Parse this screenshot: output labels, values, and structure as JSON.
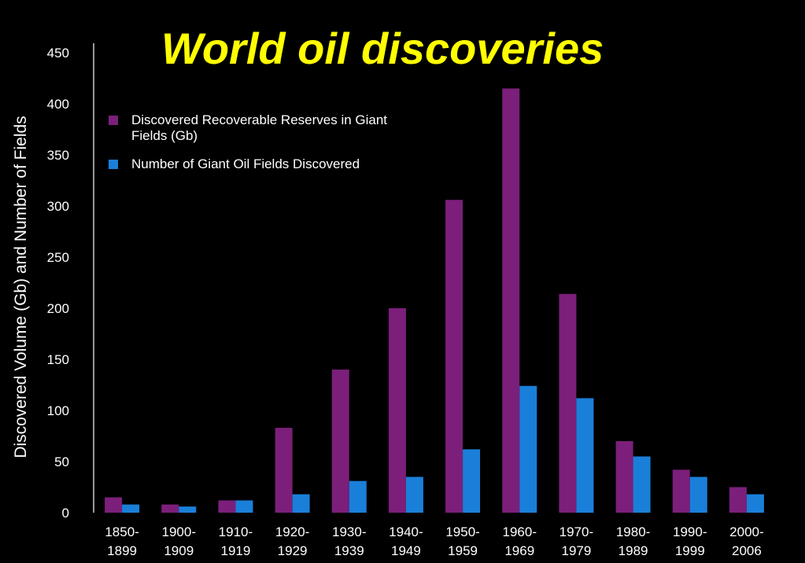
{
  "chart_data": {
    "type": "bar",
    "title": "World oil discoveries",
    "xlabel": "",
    "ylabel": "Discovered Volume (Gb) and Number of Fields",
    "ylim": [
      0,
      450
    ],
    "yticks": [
      0,
      50,
      100,
      150,
      200,
      250,
      300,
      350,
      400,
      450
    ],
    "grid": false,
    "legend_position": "top-left",
    "categories": [
      [
        "1850-",
        "1899"
      ],
      [
        "1900-",
        "1909"
      ],
      [
        "1910-",
        "1919"
      ],
      [
        "1920-",
        "1929"
      ],
      [
        "1930-",
        "1939"
      ],
      [
        "1940-",
        "1949"
      ],
      [
        "1950-",
        "1959"
      ],
      [
        "1960-",
        "1969"
      ],
      [
        "1970-",
        "1979"
      ],
      [
        "1980-",
        "1989"
      ],
      [
        "1990-",
        "1999"
      ],
      [
        "2000-",
        "2006"
      ]
    ],
    "series": [
      {
        "name": "Discovered Recoverable Reserves in Giant Fields (Gb)",
        "color": "#7b1f7b",
        "values": [
          15,
          8,
          12,
          83,
          140,
          200,
          306,
          415,
          214,
          70,
          42,
          25
        ]
      },
      {
        "name": "Number of Giant Oil Fields Discovered",
        "color": "#1a7fd9",
        "values": [
          8,
          6,
          12,
          18,
          31,
          35,
          62,
          124,
          112,
          55,
          35,
          18
        ]
      }
    ]
  }
}
